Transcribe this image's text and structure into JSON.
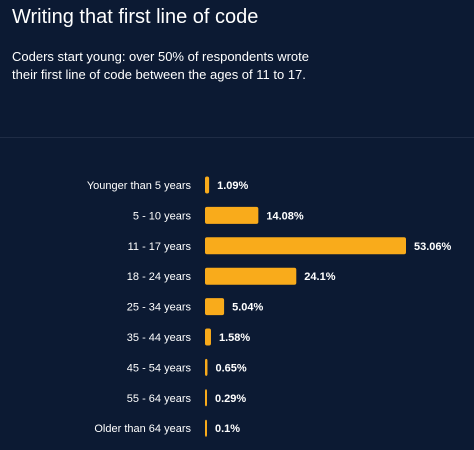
{
  "header": {
    "title": "Writing that first line of code",
    "subtitle": "Coders start young: over 50% of respondents wrote their first line of code between the ages of 11 to 17."
  },
  "colors": {
    "background": "#0c1a33",
    "bar": "#f9ab1b",
    "text": "#ffffff",
    "divider": "#1f2c45"
  },
  "chart_data": {
    "type": "bar",
    "orientation": "horizontal",
    "title": "Writing that first line of code",
    "subtitle": "Coders start young: over 50% of respondents wrote their first line of code between the ages of 11 to 17.",
    "categories": [
      "Younger than 5 years",
      "5 - 10 years",
      "11 - 17 years",
      "18 - 24 years",
      "25 - 34 years",
      "35 - 44 years",
      "45 - 54 years",
      "55 - 64 years",
      "Older than 64 years"
    ],
    "values": [
      1.09,
      14.08,
      53.06,
      24.1,
      5.04,
      1.58,
      0.65,
      0.29,
      0.1
    ],
    "value_labels": [
      "1.09%",
      "14.08%",
      "53.06%",
      "24.1%",
      "5.04%",
      "1.58%",
      "0.65%",
      "0.29%",
      "0.1%"
    ],
    "unit": "%",
    "xlim": [
      0,
      53.06
    ],
    "grid": false,
    "legend": "none"
  }
}
